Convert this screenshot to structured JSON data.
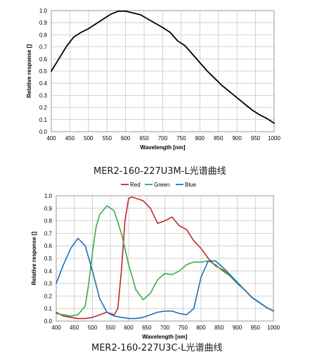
{
  "chart_data": [
    {
      "type": "line",
      "caption": "MER2-160-227U3M-L光谱曲线",
      "xlabel": "Wavelength [nm]",
      "ylabel": "Relative response []",
      "xlim": [
        400,
        1000
      ],
      "ylim": [
        0,
        1.0
      ],
      "xticks": [
        "400",
        "450",
        "500",
        "550",
        "600",
        "650",
        "700",
        "750",
        "800",
        "850",
        "900",
        "950",
        "1000"
      ],
      "yticks": [
        "0.0",
        "0.1",
        "0.2",
        "0.3",
        "0.4",
        "0.5",
        "0.6",
        "0.7",
        "0.8",
        "0.9",
        "1.0"
      ],
      "grid": true,
      "series": [
        {
          "color": "#000000",
          "x": [
            400,
            420,
            440,
            460,
            480,
            500,
            520,
            540,
            560,
            580,
            600,
            620,
            640,
            660,
            680,
            700,
            720,
            740,
            760,
            780,
            800,
            820,
            840,
            860,
            880,
            900,
            920,
            940,
            960,
            980,
            1000
          ],
          "y": [
            0.5,
            0.6,
            0.7,
            0.78,
            0.82,
            0.85,
            0.89,
            0.93,
            0.97,
            0.995,
            0.995,
            0.98,
            0.965,
            0.93,
            0.895,
            0.86,
            0.82,
            0.75,
            0.71,
            0.64,
            0.57,
            0.5,
            0.44,
            0.38,
            0.33,
            0.28,
            0.23,
            0.18,
            0.14,
            0.11,
            0.07
          ]
        }
      ]
    },
    {
      "type": "line",
      "caption": "MER2-160-227U3C-L光谱曲线",
      "xlabel": "Wavelength [nm]",
      "ylabel": "Relative response []",
      "xlim": [
        400,
        1000
      ],
      "ylim": [
        0,
        1.0
      ],
      "xticks": [
        "400",
        "450",
        "500",
        "550",
        "600",
        "650",
        "700",
        "750",
        "800",
        "850",
        "900",
        "950",
        "1000"
      ],
      "yticks": [
        "0.0",
        "0.1",
        "0.2",
        "0.3",
        "0.4",
        "0.5",
        "0.6",
        "0.7",
        "0.8",
        "0.9",
        "1.0"
      ],
      "grid": true,
      "legend": "top-center",
      "series": [
        {
          "name": "Red",
          "color": "#c0272d",
          "x": [
            400,
            420,
            440,
            460,
            480,
            500,
            520,
            540,
            560,
            570,
            580,
            590,
            600,
            610,
            620,
            640,
            660,
            680,
            700,
            720,
            740,
            760,
            780,
            800,
            820,
            840,
            860,
            880,
            900,
            920,
            940,
            960,
            980,
            1000
          ],
          "y": [
            0.07,
            0.04,
            0.03,
            0.02,
            0.02,
            0.03,
            0.05,
            0.07,
            0.05,
            0.1,
            0.4,
            0.8,
            0.98,
            0.99,
            0.98,
            0.96,
            0.9,
            0.78,
            0.8,
            0.83,
            0.76,
            0.73,
            0.64,
            0.58,
            0.5,
            0.44,
            0.41,
            0.36,
            0.3,
            0.25,
            0.19,
            0.15,
            0.11,
            0.08
          ]
        },
        {
          "name": "Green",
          "color": "#3aab48",
          "x": [
            400,
            420,
            440,
            460,
            480,
            490,
            500,
            510,
            520,
            540,
            560,
            580,
            600,
            620,
            640,
            660,
            680,
            700,
            720,
            740,
            760,
            780,
            800,
            820,
            840,
            860,
            880,
            900,
            920,
            940,
            960,
            980,
            1000
          ],
          "y": [
            0.06,
            0.05,
            0.04,
            0.05,
            0.12,
            0.3,
            0.55,
            0.75,
            0.85,
            0.92,
            0.88,
            0.7,
            0.45,
            0.25,
            0.17,
            0.22,
            0.33,
            0.38,
            0.37,
            0.4,
            0.45,
            0.47,
            0.47,
            0.48,
            0.45,
            0.4,
            0.36,
            0.3,
            0.25,
            0.19,
            0.15,
            0.11,
            0.08
          ]
        },
        {
          "name": "Blue",
          "color": "#1f6fb5",
          "x": [
            400,
            420,
            440,
            460,
            480,
            500,
            520,
            540,
            560,
            580,
            600,
            620,
            640,
            660,
            680,
            700,
            720,
            740,
            760,
            780,
            800,
            820,
            840,
            860,
            880,
            900,
            920,
            940,
            960,
            980,
            1000
          ],
          "y": [
            0.3,
            0.45,
            0.58,
            0.66,
            0.6,
            0.4,
            0.18,
            0.07,
            0.04,
            0.03,
            0.02,
            0.02,
            0.03,
            0.05,
            0.07,
            0.08,
            0.08,
            0.06,
            0.05,
            0.1,
            0.35,
            0.48,
            0.48,
            0.43,
            0.37,
            0.31,
            0.25,
            0.19,
            0.15,
            0.11,
            0.08
          ]
        }
      ]
    }
  ]
}
